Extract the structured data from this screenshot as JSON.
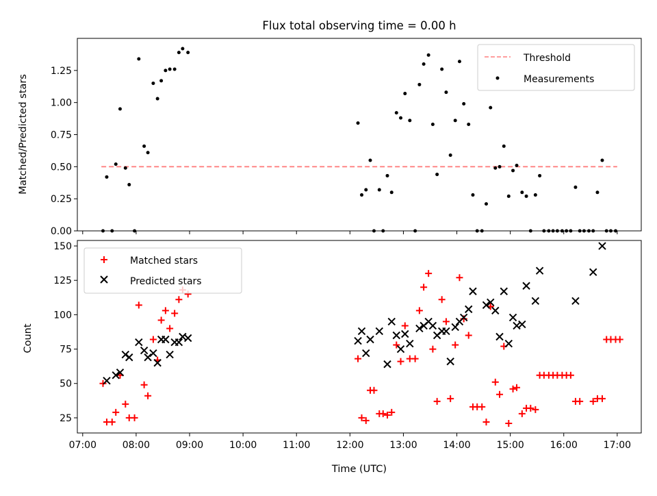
{
  "title": "Flux total observing time = 0.00 h",
  "colors": {
    "threshold": "#ff7f7f",
    "measurement": "#000000",
    "matched": "#ff0000",
    "predicted": "#000000"
  },
  "chart_data": [
    {
      "type": "scatter",
      "title": "Flux total observing time = 0.00 h",
      "ylabel": "Matched/Predicted stars",
      "xlabel": "",
      "xlim": [
        6.9,
        17.45
      ],
      "ylim": [
        0,
        1.5
      ],
      "yticks": [
        "0.00",
        "0.25",
        "0.50",
        "0.75",
        "1.00",
        "1.25"
      ],
      "legend_position": "upper right",
      "threshold": {
        "name": "Threshold",
        "y": 0.5,
        "x_range": [
          7.35,
          17.0
        ],
        "style": "dashed"
      },
      "series": [
        {
          "name": "Measurements",
          "points": [
            [
              7.38,
              0.0
            ],
            [
              7.45,
              0.42
            ],
            [
              7.55,
              0.0
            ],
            [
              7.62,
              0.52
            ],
            [
              7.7,
              0.95
            ],
            [
              7.8,
              0.49
            ],
            [
              7.87,
              0.36
            ],
            [
              7.97,
              0.0
            ],
            [
              8.05,
              1.34
            ],
            [
              8.15,
              0.66
            ],
            [
              8.22,
              0.61
            ],
            [
              8.32,
              1.15
            ],
            [
              8.4,
              1.03
            ],
            [
              8.47,
              1.17
            ],
            [
              8.55,
              1.25
            ],
            [
              8.63,
              1.26
            ],
            [
              8.72,
              1.26
            ],
            [
              8.8,
              1.39
            ],
            [
              8.87,
              1.42
            ],
            [
              8.97,
              1.39
            ],
            [
              12.15,
              0.84
            ],
            [
              12.22,
              0.28
            ],
            [
              12.3,
              0.32
            ],
            [
              12.38,
              0.55
            ],
            [
              12.45,
              0.0
            ],
            [
              12.55,
              0.32
            ],
            [
              12.62,
              0.0
            ],
            [
              12.7,
              0.43
            ],
            [
              12.78,
              0.3
            ],
            [
              12.87,
              0.92
            ],
            [
              12.95,
              0.88
            ],
            [
              13.03,
              1.07
            ],
            [
              13.12,
              0.86
            ],
            [
              13.22,
              0.0
            ],
            [
              13.3,
              1.14
            ],
            [
              13.38,
              1.3
            ],
            [
              13.47,
              1.37
            ],
            [
              13.55,
              0.83
            ],
            [
              13.63,
              0.44
            ],
            [
              13.72,
              1.26
            ],
            [
              13.8,
              1.08
            ],
            [
              13.88,
              0.59
            ],
            [
              13.97,
              0.86
            ],
            [
              14.05,
              1.32
            ],
            [
              14.13,
              0.99
            ],
            [
              14.22,
              0.83
            ],
            [
              14.3,
              0.28
            ],
            [
              14.38,
              0.0
            ],
            [
              14.47,
              0.0
            ],
            [
              14.55,
              0.21
            ],
            [
              14.63,
              0.96
            ],
            [
              14.72,
              0.49
            ],
            [
              14.8,
              0.5
            ],
            [
              14.88,
              0.66
            ],
            [
              14.97,
              0.27
            ],
            [
              15.05,
              0.47
            ],
            [
              15.12,
              0.51
            ],
            [
              15.22,
              0.3
            ],
            [
              15.3,
              0.27
            ],
            [
              15.38,
              0.0
            ],
            [
              15.47,
              0.28
            ],
            [
              15.55,
              0.43
            ],
            [
              15.63,
              0.0
            ],
            [
              15.72,
              0.0
            ],
            [
              15.8,
              0.0
            ],
            [
              15.88,
              0.0
            ],
            [
              15.97,
              0.0
            ],
            [
              16.05,
              0.0
            ],
            [
              16.13,
              0.0
            ],
            [
              16.22,
              0.34
            ],
            [
              16.3,
              0.0
            ],
            [
              16.38,
              0.0
            ],
            [
              16.47,
              0.0
            ],
            [
              16.55,
              0.0
            ],
            [
              16.63,
              0.3
            ],
            [
              16.72,
              0.55
            ],
            [
              16.8,
              0.0
            ],
            [
              16.88,
              0.0
            ],
            [
              16.97,
              0.0
            ]
          ]
        }
      ]
    },
    {
      "type": "scatter",
      "xlabel": "Time (UTC)",
      "ylabel": "Count",
      "xlim": [
        6.9,
        17.45
      ],
      "ylim": [
        14,
        154
      ],
      "yticks": [
        "25",
        "50",
        "75",
        "100",
        "125",
        "150"
      ],
      "xticks": [
        "07:00",
        "08:00",
        "09:00",
        "10:00",
        "11:00",
        "12:00",
        "13:00",
        "14:00",
        "15:00",
        "16:00",
        "17:00"
      ],
      "legend_position": "upper left",
      "series": [
        {
          "name": "Matched stars",
          "marker": "+",
          "points": [
            [
              7.38,
              50
            ],
            [
              7.45,
              22
            ],
            [
              7.55,
              22
            ],
            [
              7.62,
              29
            ],
            [
              7.7,
              56
            ],
            [
              7.8,
              35
            ],
            [
              7.87,
              25
            ],
            [
              7.97,
              25
            ],
            [
              8.05,
              107
            ],
            [
              8.15,
              49
            ],
            [
              8.22,
              41
            ],
            [
              8.32,
              82
            ],
            [
              8.4,
              67
            ],
            [
              8.47,
              96
            ],
            [
              8.55,
              103
            ],
            [
              8.63,
              90
            ],
            [
              8.72,
              101
            ],
            [
              8.8,
              111
            ],
            [
              8.87,
              118
            ],
            [
              8.97,
              115
            ],
            [
              12.15,
              68
            ],
            [
              12.22,
              25
            ],
            [
              12.3,
              23
            ],
            [
              12.38,
              45
            ],
            [
              12.45,
              45
            ],
            [
              12.55,
              28
            ],
            [
              12.62,
              28
            ],
            [
              12.7,
              27
            ],
            [
              12.78,
              29
            ],
            [
              12.87,
              78
            ],
            [
              12.95,
              66
            ],
            [
              13.03,
              92
            ],
            [
              13.12,
              68
            ],
            [
              13.22,
              68
            ],
            [
              13.3,
              103
            ],
            [
              13.38,
              120
            ],
            [
              13.47,
              130
            ],
            [
              13.55,
              75
            ],
            [
              13.63,
              37
            ],
            [
              13.72,
              111
            ],
            [
              13.8,
              95
            ],
            [
              13.88,
              39
            ],
            [
              13.97,
              78
            ],
            [
              14.05,
              127
            ],
            [
              14.13,
              97
            ],
            [
              14.22,
              85
            ],
            [
              14.3,
              33
            ],
            [
              14.38,
              33
            ],
            [
              14.47,
              33
            ],
            [
              14.55,
              22
            ],
            [
              14.63,
              106
            ],
            [
              14.72,
              51
            ],
            [
              14.8,
              42
            ],
            [
              14.88,
              77
            ],
            [
              14.97,
              21
            ],
            [
              15.05,
              46
            ],
            [
              15.12,
              47
            ],
            [
              15.22,
              28
            ],
            [
              15.3,
              32
            ],
            [
              15.38,
              32
            ],
            [
              15.47,
              31
            ],
            [
              15.55,
              56
            ],
            [
              15.63,
              56
            ],
            [
              15.72,
              56
            ],
            [
              15.8,
              56
            ],
            [
              15.88,
              56
            ],
            [
              15.97,
              56
            ],
            [
              16.05,
              56
            ],
            [
              16.13,
              56
            ],
            [
              16.22,
              37
            ],
            [
              16.3,
              37
            ],
            [
              16.55,
              37
            ],
            [
              16.63,
              39
            ],
            [
              16.72,
              39
            ],
            [
              16.8,
              82
            ],
            [
              16.88,
              82
            ],
            [
              16.97,
              82
            ],
            [
              17.05,
              82
            ]
          ]
        },
        {
          "name": "Predicted stars",
          "marker": "x",
          "points": [
            [
              7.45,
              52
            ],
            [
              7.62,
              56
            ],
            [
              7.7,
              58
            ],
            [
              7.8,
              71
            ],
            [
              7.87,
              69
            ],
            [
              8.05,
              80
            ],
            [
              8.15,
              74
            ],
            [
              8.22,
              69
            ],
            [
              8.32,
              72
            ],
            [
              8.4,
              65
            ],
            [
              8.47,
              82
            ],
            [
              8.55,
              82
            ],
            [
              8.63,
              71
            ],
            [
              8.72,
              80
            ],
            [
              8.8,
              80
            ],
            [
              8.87,
              84
            ],
            [
              8.97,
              83
            ],
            [
              12.15,
              81
            ],
            [
              12.22,
              88
            ],
            [
              12.3,
              72
            ],
            [
              12.38,
              82
            ],
            [
              12.55,
              88
            ],
            [
              12.7,
              64
            ],
            [
              12.78,
              95
            ],
            [
              12.87,
              85
            ],
            [
              12.95,
              75
            ],
            [
              13.03,
              86
            ],
            [
              13.12,
              79
            ],
            [
              13.3,
              90
            ],
            [
              13.38,
              92
            ],
            [
              13.47,
              95
            ],
            [
              13.55,
              92
            ],
            [
              13.63,
              85
            ],
            [
              13.72,
              88
            ],
            [
              13.8,
              88
            ],
            [
              13.88,
              66
            ],
            [
              13.97,
              91
            ],
            [
              14.05,
              95
            ],
            [
              14.13,
              98
            ],
            [
              14.22,
              104
            ],
            [
              14.3,
              117
            ],
            [
              14.55,
              107
            ],
            [
              14.63,
              109
            ],
            [
              14.72,
              103
            ],
            [
              14.8,
              84
            ],
            [
              14.88,
              117
            ],
            [
              14.97,
              79
            ],
            [
              15.05,
              98
            ],
            [
              15.12,
              92
            ],
            [
              15.22,
              93
            ],
            [
              15.3,
              121
            ],
            [
              15.47,
              110
            ],
            [
              15.55,
              132
            ],
            [
              16.22,
              110
            ],
            [
              16.55,
              131
            ],
            [
              16.72,
              150
            ]
          ]
        }
      ]
    }
  ]
}
